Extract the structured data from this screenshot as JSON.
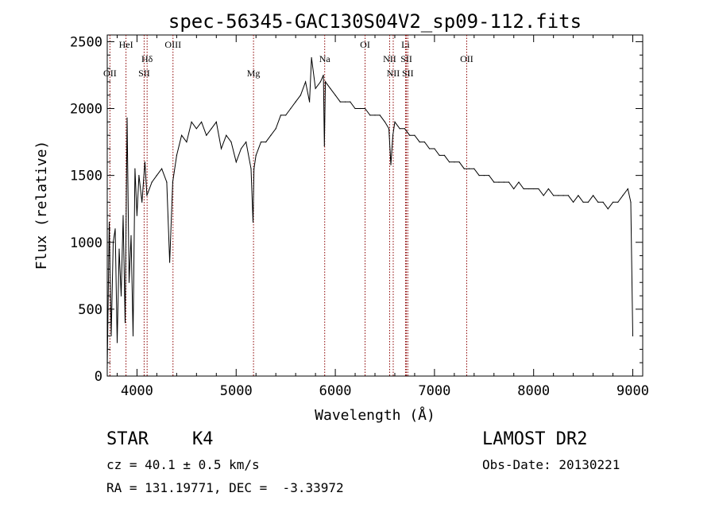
{
  "chart_data": {
    "type": "line",
    "title": "spec-56345-GAC130S04V2_sp09-112.fits",
    "xlabel": "Wavelength (Å)",
    "ylabel": "Flux (relative)",
    "xlim": [
      3700,
      9100
    ],
    "ylim": [
      0,
      2550
    ],
    "xticks": [
      4000,
      5000,
      6000,
      7000,
      8000,
      9000
    ],
    "yticks": [
      0,
      500,
      1000,
      1500,
      2000,
      2500
    ],
    "grid": false,
    "line_color": "#000000",
    "series": [
      {
        "x": [
          3700,
          3720,
          3740,
          3760,
          3780,
          3800,
          3820,
          3840,
          3860,
          3880,
          3900,
          3920,
          3940,
          3960,
          3980,
          4000,
          4020,
          4050,
          4080,
          4100,
          4150,
          4200,
          4250,
          4300,
          4330,
          4360,
          4400,
          4450,
          4500,
          4550,
          4600,
          4650,
          4700,
          4750,
          4800,
          4850,
          4900,
          4950,
          5000,
          5050,
          5100,
          5150,
          5170,
          5180,
          5200,
          5250,
          5300,
          5350,
          5400,
          5450,
          5500,
          5550,
          5600,
          5650,
          5700,
          5740,
          5760,
          5800,
          5850,
          5880,
          5890,
          5900,
          5950,
          6000,
          6050,
          6100,
          6150,
          6200,
          6250,
          6300,
          6350,
          6400,
          6450,
          6500,
          6540,
          6560,
          6580,
          6600,
          6650,
          6700,
          6750,
          6800,
          6850,
          6900,
          6950,
          7000,
          7050,
          7100,
          7150,
          7200,
          7250,
          7300,
          7350,
          7400,
          7450,
          7500,
          7550,
          7600,
          7650,
          7700,
          7750,
          7800,
          7850,
          7900,
          7950,
          8000,
          8050,
          8100,
          8150,
          8200,
          8250,
          8300,
          8350,
          8400,
          8450,
          8500,
          8550,
          8600,
          8650,
          8700,
          8750,
          8800,
          8850,
          8900,
          8950,
          8980,
          9000
        ],
        "y": [
          60,
          1150,
          300,
          1000,
          1100,
          250,
          950,
          600,
          1200,
          400,
          1930,
          700,
          1050,
          300,
          1550,
          1200,
          1500,
          1300,
          1600,
          1350,
          1450,
          1500,
          1550,
          1450,
          850,
          1450,
          1650,
          1800,
          1750,
          1900,
          1850,
          1900,
          1800,
          1850,
          1900,
          1700,
          1800,
          1750,
          1600,
          1700,
          1750,
          1550,
          1150,
          1550,
          1650,
          1750,
          1750,
          1800,
          1850,
          1950,
          1950,
          2000,
          2050,
          2100,
          2200,
          2050,
          2380,
          2150,
          2200,
          2250,
          1720,
          2200,
          2150,
          2100,
          2050,
          2050,
          2050,
          2000,
          2000,
          2000,
          1950,
          1950,
          1950,
          1900,
          1850,
          1580,
          1800,
          1900,
          1850,
          1850,
          1800,
          1800,
          1750,
          1750,
          1700,
          1700,
          1650,
          1650,
          1600,
          1600,
          1600,
          1550,
          1550,
          1550,
          1500,
          1500,
          1500,
          1450,
          1450,
          1450,
          1450,
          1400,
          1450,
          1400,
          1400,
          1400,
          1400,
          1350,
          1400,
          1350,
          1350,
          1350,
          1350,
          1300,
          1350,
          1300,
          1300,
          1350,
          1300,
          1300,
          1250,
          1300,
          1300,
          1350,
          1400,
          1300,
          300
        ]
      }
    ],
    "lines": [
      {
        "label": "OII",
        "x": 3727,
        "row": 2
      },
      {
        "label": "HeI",
        "x": 3889,
        "row": 0
      },
      {
        "label": "Hδ",
        "x": 4102,
        "row": 1
      },
      {
        "label": "SII",
        "x": 4072,
        "row": 2
      },
      {
        "label": "OIII",
        "x": 4363,
        "row": 0
      },
      {
        "label": "Mg",
        "x": 5175,
        "row": 2
      },
      {
        "label": "Na",
        "x": 5893,
        "row": 1
      },
      {
        "label": "OI",
        "x": 6300,
        "row": 0
      },
      {
        "label": "NII",
        "x": 6548,
        "row": 1
      },
      {
        "label": "NII",
        "x": 6584,
        "row": 2
      },
      {
        "label": "Li",
        "x": 6708,
        "row": 0
      },
      {
        "label": "SII",
        "x": 6717,
        "row": 1
      },
      {
        "label": "SII",
        "x": 6731,
        "row": 2
      },
      {
        "label": "OII",
        "x": 7325,
        "row": 1
      }
    ],
    "line_marker_color": "#8b0000"
  },
  "info": {
    "class": "STAR",
    "subclass": "K4",
    "survey": "LAMOST DR2",
    "cz": "cz = 40.1 ± 0.5 km/s",
    "obs_date": "Obs-Date: 20130221",
    "radec": "RA = 131.19771, DEC =  -3.33972"
  }
}
